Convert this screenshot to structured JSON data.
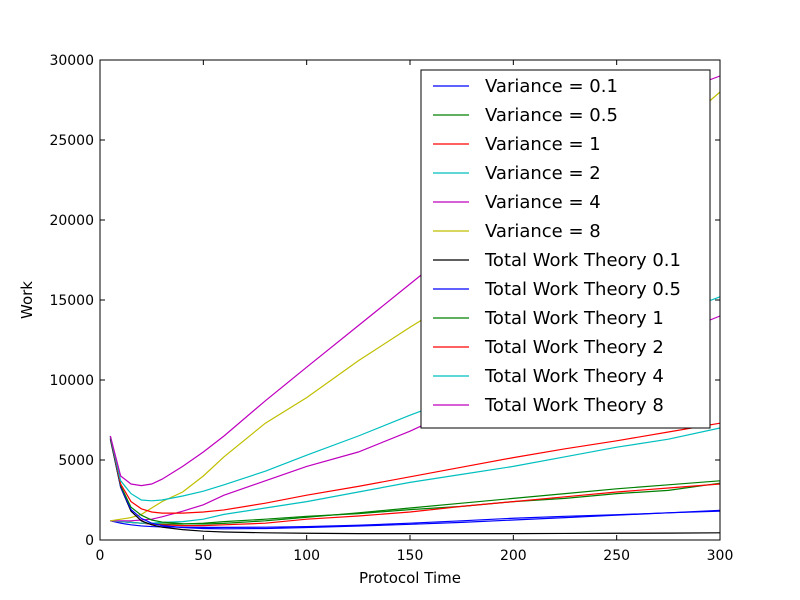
{
  "chart_data": {
    "type": "line",
    "title": "",
    "xlabel": "Protocol Time",
    "ylabel": "Work",
    "xlim": [
      0,
      300
    ],
    "ylim": [
      0,
      30000
    ],
    "xticks": [
      0,
      50,
      100,
      150,
      200,
      250,
      300
    ],
    "yticks": [
      0,
      5000,
      10000,
      15000,
      20000,
      25000,
      30000
    ],
    "grid": false,
    "legend_position": "top-right",
    "x": [
      5,
      10,
      15,
      20,
      25,
      30,
      40,
      50,
      60,
      80,
      100,
      125,
      150,
      175,
      200,
      225,
      250,
      275,
      300
    ],
    "series": [
      {
        "name": "Variance = 0.1",
        "color": "#0000ff",
        "style": "solid",
        "values": [
          1200,
          1050,
          950,
          880,
          840,
          820,
          800,
          790,
          790,
          800,
          840,
          920,
          1050,
          1200,
          1360,
          1480,
          1580,
          1700,
          1800
        ]
      },
      {
        "name": "Variance = 0.5",
        "color": "#008000",
        "style": "solid",
        "values": [
          1200,
          1150,
          1100,
          1050,
          1000,
          1000,
          1000,
          1050,
          1150,
          1300,
          1480,
          1650,
          1900,
          2100,
          2400,
          2600,
          2900,
          3100,
          3550
        ]
      },
      {
        "name": "Variance = 1",
        "color": "#ff0000",
        "style": "solid",
        "values": [
          1200,
          1150,
          1100,
          1050,
          1000,
          950,
          900,
          900,
          950,
          1050,
          1300,
          1500,
          1750,
          2100,
          2400,
          2700,
          3000,
          3250,
          3500
        ]
      },
      {
        "name": "Variance = 2",
        "color": "#00bfbf",
        "style": "solid",
        "values": [
          1200,
          1150,
          1100,
          1050,
          1050,
          1100,
          1150,
          1300,
          1600,
          2000,
          2400,
          3000,
          3600,
          4100,
          4600,
          5200,
          5800,
          6300,
          7000
        ]
      },
      {
        "name": "Variance = 4",
        "color": "#bf00bf",
        "style": "solid",
        "values": [
          1200,
          1200,
          1200,
          1250,
          1300,
          1450,
          1800,
          2200,
          2800,
          3700,
          4600,
          5500,
          6800,
          8300,
          9200,
          10300,
          11500,
          12700,
          14000
        ]
      },
      {
        "name": "Variance = 8",
        "color": "#bfbf00",
        "style": "solid",
        "values": [
          1200,
          1300,
          1400,
          1600,
          2000,
          2400,
          3000,
          4000,
          5200,
          7300,
          8900,
          11200,
          13300,
          15300,
          17800,
          20300,
          22800,
          25200,
          28000
        ]
      },
      {
        "name": "Total Work Theory 0.1",
        "color": "#000000",
        "style": "solid",
        "values": [
          6300,
          3300,
          1800,
          1200,
          950,
          800,
          650,
          550,
          500,
          450,
          420,
          400,
          400,
          400,
          400,
          410,
          420,
          430,
          450
        ]
      },
      {
        "name": "Total Work Theory 0.5",
        "color": "#0000ff",
        "style": "solid",
        "values": [
          6400,
          3300,
          1900,
          1350,
          1050,
          900,
          780,
          720,
          700,
          720,
          780,
          870,
          980,
          1100,
          1250,
          1400,
          1550,
          1700,
          1850
        ]
      },
      {
        "name": "Total Work Theory 1",
        "color": "#008000",
        "style": "solid",
        "values": [
          6400,
          3400,
          2050,
          1550,
          1250,
          1120,
          1020,
          1000,
          1040,
          1200,
          1420,
          1700,
          2000,
          2300,
          2600,
          2900,
          3200,
          3450,
          3700
        ]
      },
      {
        "name": "Total Work Theory 2",
        "color": "#ff0000",
        "style": "solid",
        "values": [
          6500,
          3500,
          2400,
          1950,
          1750,
          1680,
          1680,
          1750,
          1880,
          2300,
          2800,
          3350,
          3950,
          4550,
          5150,
          5700,
          6200,
          6750,
          7300
        ]
      },
      {
        "name": "Total Work Theory 4",
        "color": "#00bfbf",
        "style": "solid",
        "values": [
          6500,
          3700,
          2900,
          2500,
          2450,
          2500,
          2750,
          3050,
          3450,
          4300,
          5300,
          6500,
          7800,
          9000,
          10200,
          11500,
          12800,
          14000,
          15200
        ]
      },
      {
        "name": "Total Work Theory 8",
        "color": "#bf00bf",
        "style": "solid",
        "values": [
          6500,
          4000,
          3500,
          3400,
          3500,
          3800,
          4600,
          5500,
          6500,
          8700,
          10800,
          13400,
          16000,
          18600,
          21200,
          23800,
          26400,
          27800,
          29000
        ]
      }
    ]
  }
}
